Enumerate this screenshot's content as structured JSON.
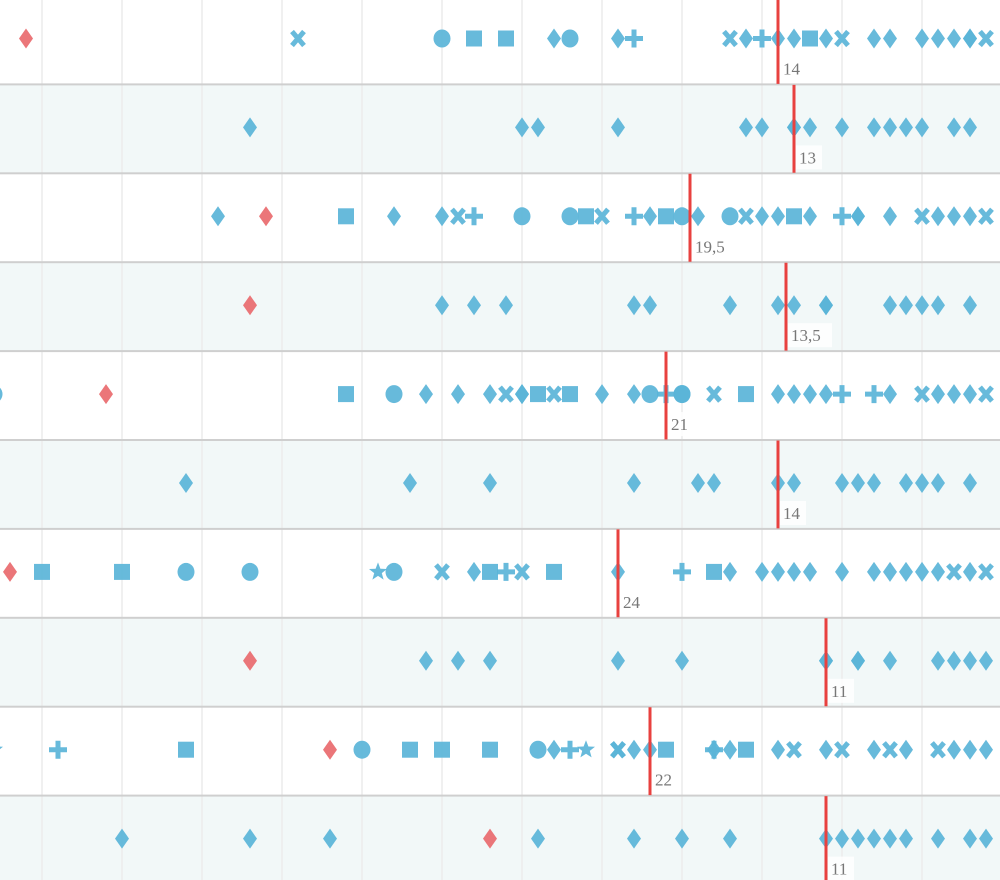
{
  "chart_data": {
    "type": "scatter",
    "orientation": "x-axis reversed (higher values to the left)",
    "xlim": [
      0,
      62.6
    ],
    "grid_step": 5,
    "grid": true,
    "colors": {
      "point": "#5ab4d8",
      "highlight": "#e96a6e",
      "median": "#e8413f",
      "row_alt_bg": "#f2f8f8",
      "row_border": "#cfcfcf",
      "grid": "#ececec"
    },
    "rows": [
      {
        "median": 14,
        "median_label": "14",
        "highlight": 61,
        "points": [
          [
            44,
            "x"
          ],
          [
            35,
            "circle"
          ],
          [
            33,
            "square"
          ],
          [
            31,
            "square"
          ],
          [
            28,
            "diamond"
          ],
          [
            27,
            "circle"
          ],
          [
            24,
            "diamond"
          ],
          [
            23,
            "plus"
          ],
          [
            17,
            "x"
          ],
          [
            16,
            "diamond"
          ],
          [
            15,
            "plus"
          ],
          [
            14,
            "diamond"
          ],
          [
            13,
            "diamond"
          ],
          [
            12,
            "square"
          ],
          [
            11,
            "diamond"
          ],
          [
            10,
            "x"
          ],
          [
            8,
            "diamond"
          ],
          [
            7,
            "diamond"
          ],
          [
            5,
            "diamond"
          ],
          [
            4,
            "diamond"
          ],
          [
            3,
            "diamond"
          ],
          [
            2,
            "diamond"
          ],
          [
            2,
            "diamond"
          ],
          [
            1,
            "x"
          ]
        ]
      },
      {
        "median": 13,
        "median_label": "13",
        "highlight": null,
        "points": [
          [
            47,
            "diamond"
          ],
          [
            30,
            "diamond"
          ],
          [
            29,
            "diamond"
          ],
          [
            24,
            "diamond"
          ],
          [
            16,
            "diamond"
          ],
          [
            15,
            "diamond"
          ],
          [
            13,
            "diamond"
          ],
          [
            13,
            "diamond"
          ],
          [
            12,
            "diamond"
          ],
          [
            10,
            "diamond"
          ],
          [
            8,
            "diamond"
          ],
          [
            7,
            "diamond"
          ],
          [
            6,
            "diamond"
          ],
          [
            5,
            "diamond"
          ],
          [
            3,
            "diamond"
          ],
          [
            2,
            "diamond"
          ]
        ]
      },
      {
        "median": 19.5,
        "median_label": "19,5",
        "highlight": 46,
        "points": [
          [
            49,
            "diamond"
          ],
          [
            41,
            "square"
          ],
          [
            38,
            "diamond"
          ],
          [
            35,
            "diamond"
          ],
          [
            34,
            "x"
          ],
          [
            33,
            "plus"
          ],
          [
            30,
            "circle"
          ],
          [
            27,
            "circle"
          ],
          [
            26,
            "square"
          ],
          [
            25,
            "x"
          ],
          [
            23,
            "plus"
          ],
          [
            22,
            "diamond"
          ],
          [
            21,
            "square"
          ],
          [
            20,
            "circle"
          ],
          [
            19,
            "diamond"
          ],
          [
            17,
            "circle"
          ],
          [
            16,
            "x"
          ],
          [
            15,
            "diamond"
          ],
          [
            14,
            "diamond"
          ],
          [
            13,
            "square"
          ],
          [
            12,
            "diamond"
          ],
          [
            10,
            "plus"
          ],
          [
            9,
            "diamond"
          ],
          [
            9,
            "diamond"
          ],
          [
            7,
            "diamond"
          ],
          [
            5,
            "x"
          ],
          [
            4,
            "diamond"
          ],
          [
            3,
            "diamond"
          ],
          [
            2,
            "diamond"
          ],
          [
            1,
            "x"
          ]
        ]
      },
      {
        "median": 13.5,
        "median_label": "13,5",
        "highlight": 47,
        "points": [
          [
            35,
            "diamond"
          ],
          [
            33,
            "diamond"
          ],
          [
            31,
            "diamond"
          ],
          [
            23,
            "diamond"
          ],
          [
            22,
            "diamond"
          ],
          [
            17,
            "diamond"
          ],
          [
            14,
            "diamond"
          ],
          [
            13,
            "diamond"
          ],
          [
            11,
            "diamond"
          ],
          [
            11,
            "diamond"
          ],
          [
            7,
            "diamond"
          ],
          [
            6,
            "diamond"
          ],
          [
            5,
            "diamond"
          ],
          [
            4,
            "diamond"
          ],
          [
            2,
            "diamond"
          ]
        ]
      },
      {
        "median": 21,
        "median_label": "21",
        "highlight": 56,
        "points": [
          [
            63,
            "circle"
          ],
          [
            41,
            "square"
          ],
          [
            38,
            "circle"
          ],
          [
            36,
            "diamond"
          ],
          [
            34,
            "diamond"
          ],
          [
            32,
            "diamond"
          ],
          [
            31,
            "x"
          ],
          [
            30,
            "diamond"
          ],
          [
            30,
            "diamond"
          ],
          [
            29,
            "square"
          ],
          [
            28,
            "x"
          ],
          [
            27,
            "square"
          ],
          [
            25,
            "diamond"
          ],
          [
            23,
            "diamond"
          ],
          [
            22,
            "circle"
          ],
          [
            21,
            "plus"
          ],
          [
            20,
            "circle"
          ],
          [
            20,
            "circle"
          ],
          [
            18,
            "x"
          ],
          [
            16,
            "square"
          ],
          [
            14,
            "diamond"
          ],
          [
            13,
            "diamond"
          ],
          [
            12,
            "diamond"
          ],
          [
            11,
            "diamond"
          ],
          [
            10,
            "plus"
          ],
          [
            8,
            "plus"
          ],
          [
            7,
            "diamond"
          ],
          [
            5,
            "x"
          ],
          [
            4,
            "diamond"
          ],
          [
            3,
            "diamond"
          ],
          [
            2,
            "diamond"
          ],
          [
            1,
            "x"
          ]
        ]
      },
      {
        "median": 14,
        "median_label": "14",
        "highlight": null,
        "points": [
          [
            51,
            "diamond"
          ],
          [
            37,
            "diamond"
          ],
          [
            32,
            "diamond"
          ],
          [
            23,
            "diamond"
          ],
          [
            19,
            "diamond"
          ],
          [
            18,
            "diamond"
          ],
          [
            14,
            "diamond"
          ],
          [
            13,
            "diamond"
          ],
          [
            10,
            "diamond"
          ],
          [
            9,
            "diamond"
          ],
          [
            8,
            "diamond"
          ],
          [
            6,
            "diamond"
          ],
          [
            5,
            "diamond"
          ],
          [
            4,
            "diamond"
          ],
          [
            2,
            "diamond"
          ]
        ]
      },
      {
        "median": 24,
        "median_label": "24",
        "highlight": 62,
        "points": [
          [
            60,
            "square"
          ],
          [
            55,
            "square"
          ],
          [
            51,
            "circle"
          ],
          [
            47,
            "circle"
          ],
          [
            39,
            "star"
          ],
          [
            38,
            "circle"
          ],
          [
            35,
            "x"
          ],
          [
            33,
            "diamond"
          ],
          [
            32,
            "square"
          ],
          [
            31,
            "plus"
          ],
          [
            30,
            "x"
          ],
          [
            28,
            "square"
          ],
          [
            24,
            "diamond"
          ],
          [
            20,
            "plus"
          ],
          [
            18,
            "square"
          ],
          [
            17,
            "diamond"
          ],
          [
            15,
            "diamond"
          ],
          [
            14,
            "diamond"
          ],
          [
            13,
            "diamond"
          ],
          [
            12,
            "diamond"
          ],
          [
            10,
            "diamond"
          ],
          [
            8,
            "diamond"
          ],
          [
            7,
            "diamond"
          ],
          [
            6,
            "diamond"
          ],
          [
            5,
            "diamond"
          ],
          [
            4,
            "diamond"
          ],
          [
            3,
            "x"
          ],
          [
            2,
            "diamond"
          ],
          [
            1,
            "x"
          ]
        ]
      },
      {
        "median": 11,
        "median_label": "11",
        "highlight": 47,
        "points": [
          [
            36,
            "diamond"
          ],
          [
            34,
            "diamond"
          ],
          [
            32,
            "diamond"
          ],
          [
            24,
            "diamond"
          ],
          [
            20,
            "diamond"
          ],
          [
            11,
            "diamond"
          ],
          [
            11,
            "diamond"
          ],
          [
            9,
            "diamond"
          ],
          [
            9,
            "diamond"
          ],
          [
            7,
            "diamond"
          ],
          [
            4,
            "diamond"
          ],
          [
            3,
            "diamond"
          ],
          [
            2,
            "diamond"
          ],
          [
            1,
            "diamond"
          ]
        ]
      },
      {
        "median": 22,
        "median_label": "22",
        "highlight": 42,
        "points": [
          [
            63,
            "star"
          ],
          [
            59,
            "plus"
          ],
          [
            51,
            "square"
          ],
          [
            40,
            "circle"
          ],
          [
            37,
            "square"
          ],
          [
            35,
            "square"
          ],
          [
            32,
            "square"
          ],
          [
            29,
            "circle"
          ],
          [
            28,
            "diamond"
          ],
          [
            27,
            "plus"
          ],
          [
            26,
            "star"
          ],
          [
            24,
            "x"
          ],
          [
            24,
            "x"
          ],
          [
            23,
            "diamond"
          ],
          [
            22,
            "diamond"
          ],
          [
            21,
            "square"
          ],
          [
            18,
            "plus"
          ],
          [
            18,
            "diamond"
          ],
          [
            17,
            "diamond"
          ],
          [
            16,
            "square"
          ],
          [
            14,
            "diamond"
          ],
          [
            13,
            "x"
          ],
          [
            11,
            "diamond"
          ],
          [
            10,
            "x"
          ],
          [
            8,
            "diamond"
          ],
          [
            7,
            "x"
          ],
          [
            6,
            "diamond"
          ],
          [
            4,
            "x"
          ],
          [
            3,
            "diamond"
          ],
          [
            2,
            "diamond"
          ],
          [
            1,
            "diamond"
          ]
        ]
      },
      {
        "median": 11,
        "median_label": "11",
        "highlight": 32,
        "points": [
          [
            55,
            "diamond"
          ],
          [
            47,
            "diamond"
          ],
          [
            42,
            "diamond"
          ],
          [
            29,
            "diamond"
          ],
          [
            23,
            "diamond"
          ],
          [
            20,
            "diamond"
          ],
          [
            17,
            "diamond"
          ],
          [
            11,
            "diamond"
          ],
          [
            10,
            "diamond"
          ],
          [
            9,
            "diamond"
          ],
          [
            8,
            "diamond"
          ],
          [
            7,
            "diamond"
          ],
          [
            6,
            "diamond"
          ],
          [
            4,
            "diamond"
          ],
          [
            2,
            "diamond"
          ],
          [
            1,
            "diamond"
          ]
        ]
      }
    ]
  }
}
